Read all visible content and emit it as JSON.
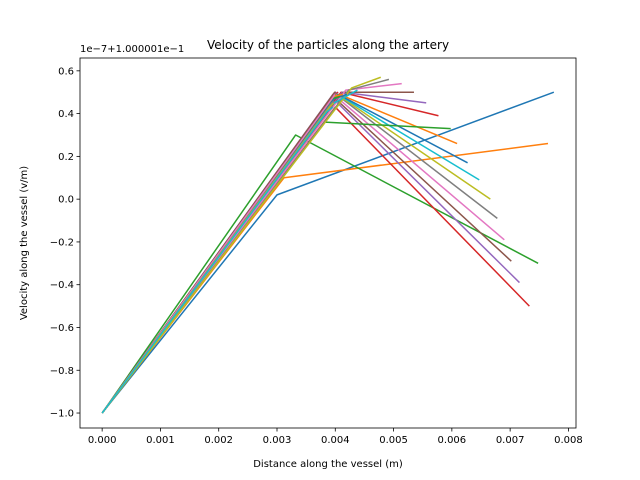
{
  "chart_data": {
    "type": "line",
    "title": "Velocity of the particles along the artery",
    "xlabel": "Distance along the vessel (m)",
    "ylabel": "Velocity along the vessel (v/m)",
    "offset_text": "1e−7+1.000001e−1",
    "xlim": [
      -0.00038,
      0.00813
    ],
    "ylim": [
      -1.07,
      0.66
    ],
    "xticks": [
      0.0,
      0.001,
      0.002,
      0.003,
      0.004,
      0.005,
      0.006,
      0.007,
      0.008
    ],
    "xtick_labels": [
      "0.000",
      "0.001",
      "0.002",
      "0.003",
      "0.004",
      "0.005",
      "0.006",
      "0.007",
      "0.008"
    ],
    "yticks": [
      -1.0,
      -0.8,
      -0.6,
      -0.4,
      -0.2,
      0.0,
      0.2,
      0.4,
      0.6
    ],
    "ytick_labels": [
      "−1.0",
      "−0.8",
      "−0.6",
      "−0.4",
      "−0.2",
      "0.0",
      "0.2",
      "0.4",
      "0.6"
    ],
    "grid": false,
    "series": [
      {
        "color": "#1f77b4",
        "x": [
          0.0,
          0.003,
          0.00775
        ],
        "y": [
          -1.0,
          0.02,
          0.5
        ]
      },
      {
        "color": "#ff7f0e",
        "x": [
          0.0,
          0.00312,
          0.00765
        ],
        "y": [
          -1.0,
          0.1,
          0.26
        ]
      },
      {
        "color": "#2ca02c",
        "x": [
          0.0,
          0.00332,
          0.00748
        ],
        "y": [
          -1.0,
          0.3,
          -0.3
        ]
      },
      {
        "color": "#d62728",
        "x": [
          0.0,
          0.004,
          0.00733
        ],
        "y": [
          -1.0,
          0.43,
          -0.5
        ]
      },
      {
        "color": "#9467bd",
        "x": [
          0.0,
          0.004,
          0.00716
        ],
        "y": [
          -1.0,
          0.46,
          -0.39
        ]
      },
      {
        "color": "#8c564b",
        "x": [
          0.0,
          0.004,
          0.00702
        ],
        "y": [
          -1.0,
          0.47,
          -0.29
        ]
      },
      {
        "color": "#e377c2",
        "x": [
          0.0,
          0.00401,
          0.0069
        ],
        "y": [
          -1.0,
          0.48,
          -0.19
        ]
      },
      {
        "color": "#7f7f7f",
        "x": [
          0.0,
          0.00402,
          0.00678
        ],
        "y": [
          -1.0,
          0.49,
          -0.09
        ]
      },
      {
        "color": "#bcbd22",
        "x": [
          0.0,
          0.00403,
          0.00666
        ],
        "y": [
          -1.0,
          0.49,
          0.0
        ]
      },
      {
        "color": "#17becf",
        "x": [
          0.0,
          0.00404,
          0.00647
        ],
        "y": [
          -1.0,
          0.49,
          0.09
        ]
      },
      {
        "color": "#1f77b4",
        "x": [
          0.0,
          0.00405,
          0.00627
        ],
        "y": [
          -1.0,
          0.49,
          0.17
        ]
      },
      {
        "color": "#ff7f0e",
        "x": [
          0.0,
          0.00407,
          0.00609
        ],
        "y": [
          -1.0,
          0.49,
          0.26
        ]
      },
      {
        "color": "#2ca02c",
        "x": [
          0.0,
          0.00382,
          0.00598
        ],
        "y": [
          -1.0,
          0.36,
          0.33
        ]
      },
      {
        "color": "#d62728",
        "x": [
          0.0,
          0.0041,
          0.00577
        ],
        "y": [
          -1.0,
          0.5,
          0.39
        ]
      },
      {
        "color": "#9467bd",
        "x": [
          0.0,
          0.00412,
          0.00556
        ],
        "y": [
          -1.0,
          0.5,
          0.45
        ]
      },
      {
        "color": "#8c564b",
        "x": [
          0.0,
          0.00414,
          0.00535
        ],
        "y": [
          -1.0,
          0.5,
          0.5
        ]
      },
      {
        "color": "#e377c2",
        "x": [
          0.0,
          0.00418,
          0.00514
        ],
        "y": [
          -1.0,
          0.51,
          0.54
        ]
      },
      {
        "color": "#7f7f7f",
        "x": [
          0.0,
          0.00423,
          0.00492
        ],
        "y": [
          -1.0,
          0.51,
          0.56
        ]
      },
      {
        "color": "#bcbd22",
        "x": [
          0.0,
          0.00428,
          0.00478
        ],
        "y": [
          -1.0,
          0.52,
          0.57
        ]
      },
      {
        "color": "#17becf",
        "x": [
          0.0,
          0.00392,
          0.00438
        ],
        "y": [
          -1.0,
          0.44,
          0.51
        ]
      },
      {
        "color": "#1f77b4",
        "x": [
          0.0,
          0.00398,
          0.0042
        ],
        "y": [
          -1.0,
          0.47,
          0.49
        ]
      },
      {
        "color": "#ff7f0e",
        "x": [
          0.0,
          0.00397,
          0.00413
        ],
        "y": [
          -1.0,
          0.48,
          0.49
        ]
      },
      {
        "color": "#2ca02c",
        "x": [
          0.0,
          0.00395,
          0.00408
        ],
        "y": [
          -1.0,
          0.47,
          0.48
        ]
      },
      {
        "color": "#d62728",
        "x": [
          0.0,
          0.00398,
          0.00405
        ],
        "y": [
          -1.0,
          0.49,
          0.5
        ]
      },
      {
        "color": "#9467bd",
        "x": [
          0.0,
          0.00396,
          0.00402
        ],
        "y": [
          -1.0,
          0.49,
          0.5
        ]
      },
      {
        "color": "#8c564b",
        "x": [
          0.0,
          0.00399,
          0.00401
        ],
        "y": [
          -1.0,
          0.5,
          0.5
        ]
      },
      {
        "color": "#e377c2",
        "x": [
          0.0,
          0.00397,
          0.00399
        ],
        "y": [
          -1.0,
          0.48,
          0.49
        ]
      },
      {
        "color": "#7f7f7f",
        "x": [
          0.0,
          0.00394,
          0.00398
        ],
        "y": [
          -1.0,
          0.45,
          0.46
        ]
      },
      {
        "color": "#bcbd22",
        "x": [
          0.0,
          0.0039,
          0.00397
        ],
        "y": [
          -1.0,
          0.43,
          0.45
        ]
      },
      {
        "color": "#17becf",
        "x": [
          0.0,
          0.00386,
          0.00396
        ],
        "y": [
          -1.0,
          0.41,
          0.43
        ]
      }
    ]
  }
}
